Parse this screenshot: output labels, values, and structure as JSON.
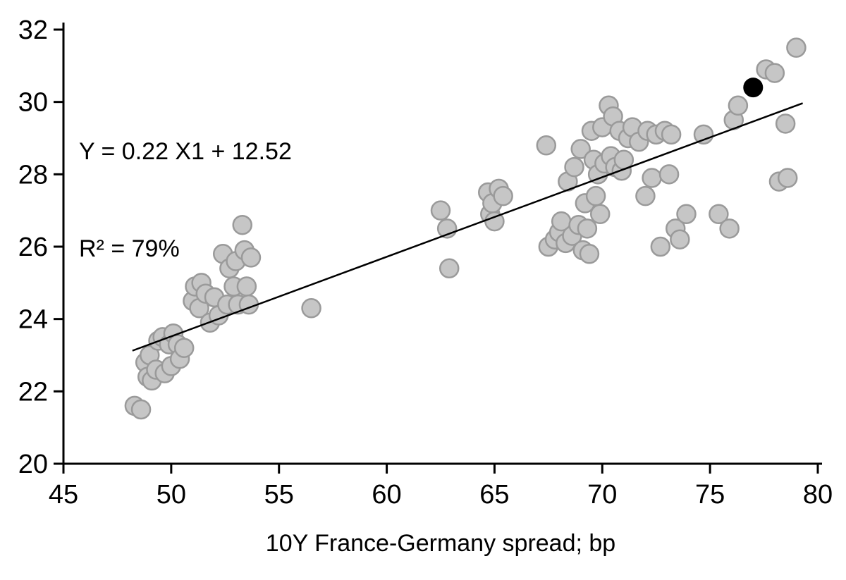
{
  "chart_data": {
    "type": "scatter",
    "title": "",
    "xlabel": "10Y France-Germany spread; bp",
    "ylabel": "",
    "xlim": [
      45,
      80
    ],
    "ylim": [
      20,
      32
    ],
    "xticks": [
      45,
      50,
      55,
      60,
      65,
      70,
      75,
      80
    ],
    "yticks": [
      20,
      22,
      24,
      26,
      28,
      30,
      32
    ],
    "grid": false,
    "legend": "none",
    "annotation": {
      "line1": "Y = 0.22 X1 + 12.52",
      "line2": "R² = 79%"
    },
    "trendline": {
      "slope": 0.22,
      "intercept": 12.52,
      "x_start": 48.2,
      "x_end": 79.3,
      "color": "#000000"
    },
    "colors": {
      "point_fill": "#c6c6c6",
      "point_stroke": "#9a9a9a",
      "highlight_fill": "#000000",
      "axis": "#000000"
    },
    "series": [
      {
        "name": "observations",
        "marker": "circle",
        "points": [
          [
            48.3,
            21.6
          ],
          [
            48.6,
            21.5
          ],
          [
            48.8,
            22.8
          ],
          [
            48.9,
            22.4
          ],
          [
            49.0,
            23.0
          ],
          [
            49.1,
            22.3
          ],
          [
            49.3,
            22.6
          ],
          [
            49.4,
            23.4
          ],
          [
            49.6,
            23.5
          ],
          [
            49.7,
            22.5
          ],
          [
            49.9,
            23.3
          ],
          [
            50.0,
            22.7
          ],
          [
            50.1,
            23.6
          ],
          [
            50.3,
            23.3
          ],
          [
            50.4,
            22.9
          ],
          [
            50.6,
            23.2
          ],
          [
            51.0,
            24.5
          ],
          [
            51.1,
            24.9
          ],
          [
            51.3,
            24.3
          ],
          [
            51.4,
            25.0
          ],
          [
            51.6,
            24.7
          ],
          [
            51.8,
            23.9
          ],
          [
            52.0,
            24.6
          ],
          [
            52.2,
            24.1
          ],
          [
            52.4,
            25.8
          ],
          [
            52.6,
            24.4
          ],
          [
            52.7,
            25.4
          ],
          [
            52.9,
            24.9
          ],
          [
            53.0,
            25.6
          ],
          [
            53.1,
            24.4
          ],
          [
            53.3,
            26.6
          ],
          [
            53.4,
            25.9
          ],
          [
            53.5,
            24.9
          ],
          [
            53.6,
            24.4
          ],
          [
            53.7,
            25.7
          ],
          [
            56.5,
            24.3
          ],
          [
            62.5,
            27.0
          ],
          [
            62.8,
            26.5
          ],
          [
            62.9,
            25.4
          ],
          [
            64.7,
            27.5
          ],
          [
            64.8,
            26.9
          ],
          [
            64.9,
            27.2
          ],
          [
            65.0,
            26.7
          ],
          [
            65.2,
            27.6
          ],
          [
            65.4,
            27.4
          ],
          [
            67.4,
            28.8
          ],
          [
            67.5,
            26.0
          ],
          [
            67.8,
            26.2
          ],
          [
            68.0,
            26.4
          ],
          [
            68.1,
            26.7
          ],
          [
            68.3,
            26.1
          ],
          [
            68.4,
            27.8
          ],
          [
            68.6,
            26.3
          ],
          [
            68.7,
            28.2
          ],
          [
            68.9,
            26.6
          ],
          [
            69.0,
            28.7
          ],
          [
            69.1,
            25.9
          ],
          [
            69.2,
            27.2
          ],
          [
            69.3,
            26.5
          ],
          [
            69.4,
            25.8
          ],
          [
            69.5,
            29.2
          ],
          [
            69.6,
            28.4
          ],
          [
            69.7,
            27.4
          ],
          [
            69.8,
            28.0
          ],
          [
            69.9,
            26.9
          ],
          [
            70.0,
            29.3
          ],
          [
            70.1,
            28.3
          ],
          [
            70.3,
            29.9
          ],
          [
            70.4,
            28.5
          ],
          [
            70.5,
            29.6
          ],
          [
            70.6,
            28.2
          ],
          [
            70.8,
            29.2
          ],
          [
            70.9,
            28.1
          ],
          [
            71.0,
            28.4
          ],
          [
            71.2,
            29.0
          ],
          [
            71.4,
            29.3
          ],
          [
            71.7,
            28.9
          ],
          [
            72.0,
            27.4
          ],
          [
            72.1,
            29.2
          ],
          [
            72.3,
            27.9
          ],
          [
            72.5,
            29.1
          ],
          [
            72.7,
            26.0
          ],
          [
            72.9,
            29.2
          ],
          [
            73.1,
            28.0
          ],
          [
            73.2,
            29.1
          ],
          [
            73.4,
            26.5
          ],
          [
            73.6,
            26.2
          ],
          [
            73.9,
            26.9
          ],
          [
            74.7,
            29.1
          ],
          [
            75.4,
            26.9
          ],
          [
            75.9,
            26.5
          ],
          [
            76.1,
            29.5
          ],
          [
            76.3,
            29.9
          ],
          [
            77.6,
            30.9
          ],
          [
            78.0,
            30.8
          ],
          [
            78.2,
            27.8
          ],
          [
            78.5,
            29.4
          ],
          [
            78.6,
            27.9
          ],
          [
            79.0,
            31.5
          ]
        ]
      },
      {
        "name": "latest-observation",
        "marker": "circle-filled-black",
        "points": [
          [
            77.0,
            30.4
          ]
        ]
      }
    ]
  }
}
